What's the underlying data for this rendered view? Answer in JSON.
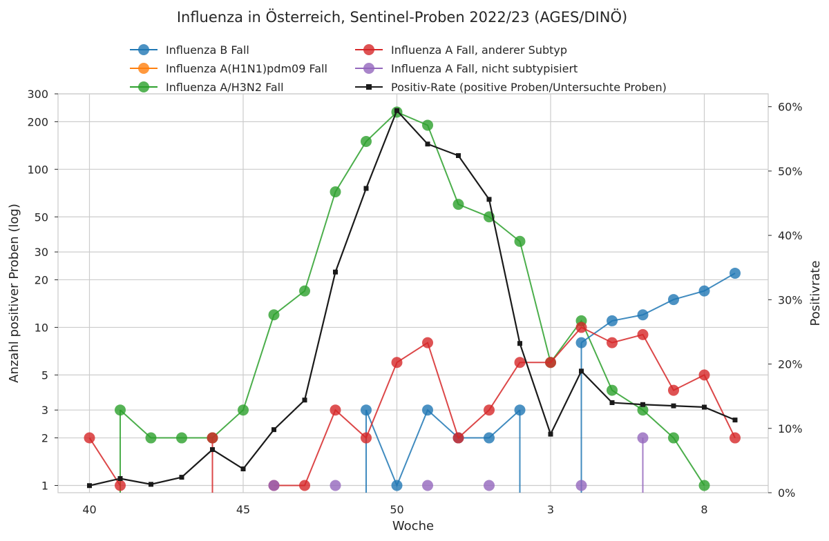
{
  "chart_data": {
    "type": "line",
    "title": "Influenza in Österreich, Sentinel-Proben 2022/23 (AGES/DINÖ)",
    "xlabel": "Woche",
    "ylabel": "Anzahl positiver Proben (log)",
    "y2label": "Positivrate",
    "x_weeks": [
      "40",
      "41",
      "42",
      "43",
      "44",
      "45",
      "46",
      "47",
      "48",
      "49",
      "50",
      "51",
      "52",
      "1",
      "2",
      "3",
      "4",
      "5",
      "6",
      "7",
      "8",
      "9"
    ],
    "x_tick_labels": [
      "40",
      "45",
      "50",
      "3",
      "8"
    ],
    "y_scale": "log",
    "ylim": [
      0.9,
      300
    ],
    "y_tick_labels": [
      "1",
      "2",
      "3",
      "5",
      "10",
      "20",
      "30",
      "50",
      "100",
      "200",
      "300"
    ],
    "y2lim": [
      0,
      62
    ],
    "y2_tick_labels": [
      "0%",
      "10%",
      "20%",
      "30%",
      "40%",
      "50%",
      "60%"
    ],
    "grid": true,
    "legend_position": "top",
    "series": [
      {
        "name": "Influenza B Fall",
        "color": "#1f77b4",
        "marker": "circle",
        "values": [
          null,
          null,
          null,
          null,
          null,
          null,
          null,
          null,
          null,
          3,
          1,
          3,
          2,
          2,
          3,
          null,
          8,
          11,
          12,
          15,
          17,
          22
        ]
      },
      {
        "name": "Influenza A(H1N1)pdm09 Fall",
        "color": "#ff7f0e",
        "marker": "circle",
        "values": [
          null,
          null,
          null,
          null,
          null,
          null,
          null,
          null,
          null,
          null,
          null,
          null,
          null,
          null,
          null,
          null,
          null,
          null,
          null,
          null,
          null,
          null
        ]
      },
      {
        "name": "Influenza A/H3N2 Fall",
        "color": "#2ca02c",
        "marker": "circle",
        "values": [
          null,
          3,
          2,
          2,
          2,
          3,
          12,
          17,
          72,
          150,
          230,
          190,
          60,
          50,
          35,
          6,
          11,
          4,
          3,
          2,
          1,
          null
        ]
      },
      {
        "name": "Influenza A Fall, anderer Subtyp",
        "color": "#d62728",
        "marker": "circle",
        "values": [
          2,
          1,
          null,
          null,
          2,
          null,
          1,
          1,
          3,
          2,
          6,
          8,
          2,
          3,
          6,
          6,
          10,
          8,
          9,
          4,
          5,
          2
        ]
      },
      {
        "name": "Influenza A Fall, nicht subtypisiert",
        "color": "#9467bd",
        "marker": "circle",
        "values": [
          null,
          null,
          null,
          null,
          null,
          null,
          1,
          null,
          1,
          null,
          null,
          1,
          null,
          1,
          null,
          null,
          1,
          null,
          2,
          null,
          null,
          null
        ]
      },
      {
        "name": "Positiv-Rate (positive Proben/Untersuchte Proben)",
        "color": "#1a1a1a",
        "marker": "square",
        "axis": "right",
        "unit": "%",
        "values": [
          1.1,
          2.2,
          1.3,
          2.4,
          6.7,
          3.7,
          9.8,
          14.4,
          34.3,
          47.3,
          59.4,
          54.2,
          52.4,
          45.6,
          23.2,
          9.1,
          18.9,
          14.0,
          13.7,
          13.5,
          13.3,
          11.3
        ]
      }
    ]
  }
}
